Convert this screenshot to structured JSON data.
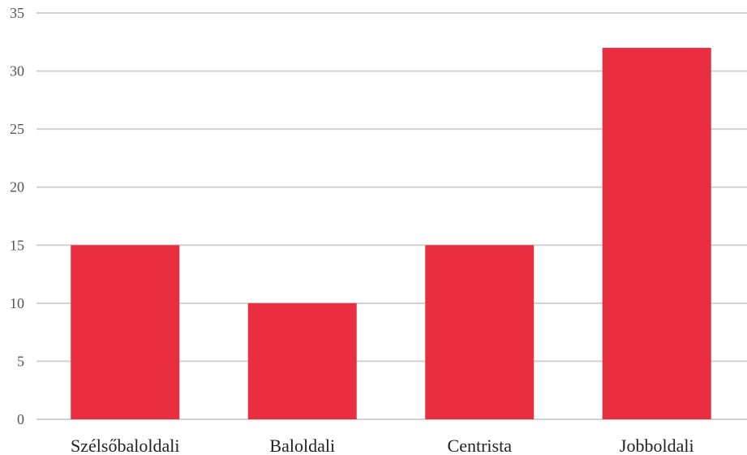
{
  "chart_data": {
    "type": "bar",
    "categories": [
      "Szélsőbaloldali",
      "Baloldali",
      "Centrista",
      "Jobboldali"
    ],
    "series": [
      {
        "values": [
          15,
          10,
          15,
          32
        ]
      }
    ],
    "title": "",
    "xlabel": "",
    "ylabel": "",
    "ylim": [
      0,
      35
    ],
    "yticks": [
      0,
      5,
      10,
      15,
      20,
      25,
      30,
      35
    ],
    "grid": true,
    "legend": "none",
    "bar_color": "#E92E42",
    "grid_color": "#D0D0D0"
  }
}
